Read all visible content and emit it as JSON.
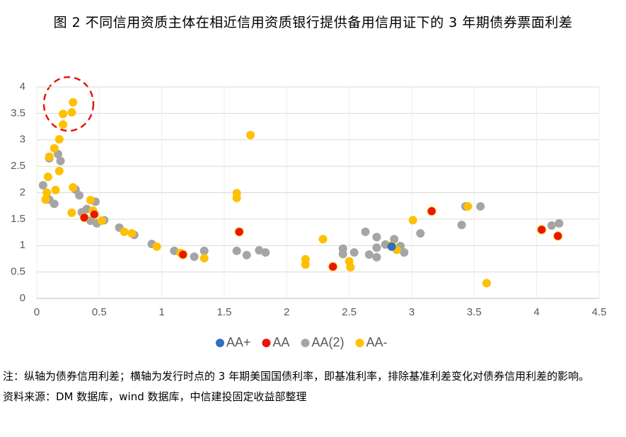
{
  "chart_data": {
    "type": "scatter",
    "title": "图 2 不同信用资质主体在相近信用资质银行提供备用信用证下的 3 年期债券票面利差",
    "xlim": [
      0,
      4.5
    ],
    "xticks": [
      0,
      0.5,
      1,
      1.5,
      2,
      2.5,
      3,
      3.5,
      4,
      4.5
    ],
    "ylim": [
      0,
      4
    ],
    "yticks": [
      0,
      0.5,
      1,
      1.5,
      2,
      2.5,
      3,
      3.5,
      4
    ],
    "grid": true,
    "legend": "bottom",
    "series": [
      {
        "name": "AA+",
        "color": "#2e6fc1",
        "x": [
          2.84
        ],
        "values": [
          0.98
        ]
      },
      {
        "name": "AA",
        "color": "#e8150c",
        "x": [
          0.38,
          0.46,
          1.17,
          1.62,
          2.37,
          3.16,
          4.04,
          4.17
        ],
        "values": [
          1.53,
          1.59,
          0.83,
          1.26,
          0.6,
          1.65,
          1.3,
          1.18
        ]
      },
      {
        "name": "AA(2)",
        "color": "#a5a5a5",
        "x": [
          0.05,
          0.1,
          0.14,
          0.1,
          0.17,
          0.19,
          0.31,
          0.34,
          0.36,
          0.4,
          0.47,
          0.43,
          0.48,
          0.54,
          0.66,
          0.78,
          0.92,
          1.1,
          1.26,
          1.34,
          1.6,
          1.68,
          1.78,
          1.83,
          2.45,
          2.45,
          2.54,
          2.63,
          2.66,
          2.72,
          2.72,
          2.72,
          2.79,
          2.86,
          2.91,
          2.94,
          3.07,
          3.4,
          3.43,
          3.55,
          4.12,
          4.18
        ],
        "values": [
          2.14,
          1.87,
          1.79,
          2.65,
          2.73,
          2.6,
          2.06,
          1.95,
          1.63,
          1.69,
          1.83,
          1.47,
          1.42,
          1.48,
          1.34,
          1.2,
          1.03,
          0.9,
          0.79,
          0.9,
          0.9,
          0.82,
          0.91,
          0.87,
          0.94,
          0.84,
          0.87,
          1.26,
          0.83,
          1.16,
          0.96,
          0.78,
          1.02,
          1.12,
          0.99,
          0.87,
          1.23,
          1.39,
          1.74,
          1.74,
          1.38,
          1.42
        ]
      },
      {
        "name": "AA-",
        "color": "#ffc000",
        "x": [
          0.29,
          0.21,
          0.28,
          0.21,
          0.18,
          0.14,
          0.1,
          0.09,
          0.18,
          0.08,
          0.15,
          0.07,
          0.29,
          0.28,
          0.43,
          0.45,
          0.52,
          0.7,
          0.76,
          0.96,
          1.15,
          1.34,
          1.6,
          1.6,
          1.71,
          2.15,
          2.15,
          2.29,
          2.5,
          2.51,
          2.84,
          2.88,
          3.01,
          3.45,
          3.6
        ],
        "values": [
          3.71,
          3.49,
          3.52,
          3.29,
          3.01,
          2.84,
          2.68,
          2.3,
          2.41,
          2.0,
          2.05,
          1.87,
          2.1,
          1.62,
          1.86,
          1.66,
          1.47,
          1.26,
          1.23,
          0.98,
          0.86,
          0.76,
          1.9,
          1.99,
          3.09,
          0.74,
          0.64,
          1.12,
          0.7,
          0.59,
          1.0,
          0.92,
          1.48,
          1.74,
          0.29
        ]
      }
    ],
    "note": "注：纵轴为债券信用利差；横轴为发行时点的 3 年期美国国债利率，即基准利率，排除基准利差变化对债券信用利差的影响。",
    "source": "资料来源：DM 数据库，wind 数据库，中信建投固定收益部整理"
  }
}
